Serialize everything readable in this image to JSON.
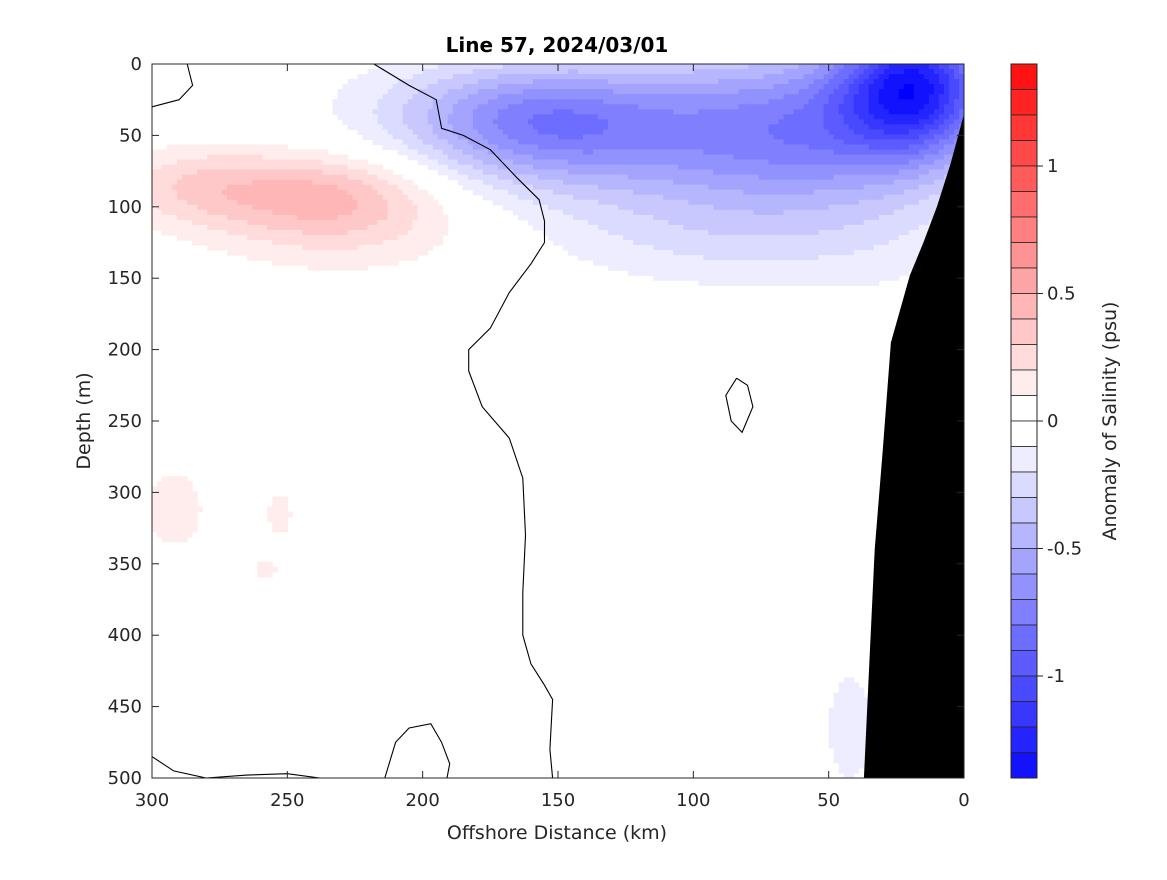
{
  "chart_data": {
    "type": "heatmap",
    "title": "Line 57, 2024/03/01",
    "xlabel": "Offshore Distance (km)",
    "ylabel": "Depth (m)",
    "xlim": [
      300,
      0
    ],
    "x_reversed": true,
    "ylim": [
      0,
      500
    ],
    "y_reversed": true,
    "xticks": [
      "300",
      "250",
      "200",
      "150",
      "100",
      "50",
      "0"
    ],
    "xtick_values": [
      300,
      250,
      200,
      150,
      100,
      50,
      0
    ],
    "yticks": [
      "0",
      "50",
      "100",
      "150",
      "200",
      "250",
      "300",
      "350",
      "400",
      "450",
      "500"
    ],
    "ytick_values": [
      0,
      50,
      100,
      150,
      200,
      250,
      300,
      350,
      400,
      450,
      500
    ],
    "colorbar": {
      "label": "Anomaly of Salinity (psu)",
      "range": [
        -1.4,
        1.4
      ],
      "step": 0.1,
      "tick_labels": [
        "1",
        "0.5",
        "0",
        "-0.5",
        "-1"
      ],
      "tick_values": [
        1,
        0.5,
        0,
        -0.5,
        -1
      ],
      "negative_color": "#0000ff",
      "positive_color": "#ff0000",
      "zero_color": "#ffffff"
    },
    "bathymetry_color": "#000000",
    "zero_contour_color": "#000000",
    "features": [
      {
        "name": "surface fresh anomaly near coast",
        "min_value": -1.05,
        "x_center_km": 20,
        "depth_center_m": 15
      },
      {
        "name": "subsurface fresh lobe",
        "min_value": -0.45,
        "x_center_km": 155,
        "depth_center_m": 45
      },
      {
        "name": "offshore salty anomaly",
        "max_value": 0.35,
        "x_center_km": 235,
        "depth_center_m": 90
      },
      {
        "name": "deep salty patch",
        "max_value": 0.1,
        "x_center_km": 290,
        "depth_center_m": 315
      },
      {
        "name": "deep fresh patch near slope",
        "min_value": -0.1,
        "x_center_km": 42,
        "depth_center_m": 465
      }
    ],
    "bathymetry_km_depth": [
      [
        0,
        35
      ],
      [
        5,
        70
      ],
      [
        10,
        100
      ],
      [
        15,
        125
      ],
      [
        20,
        148
      ],
      [
        27,
        195
      ],
      [
        30,
        270
      ],
      [
        33,
        340
      ],
      [
        35,
        420
      ],
      [
        37,
        500
      ]
    ]
  }
}
